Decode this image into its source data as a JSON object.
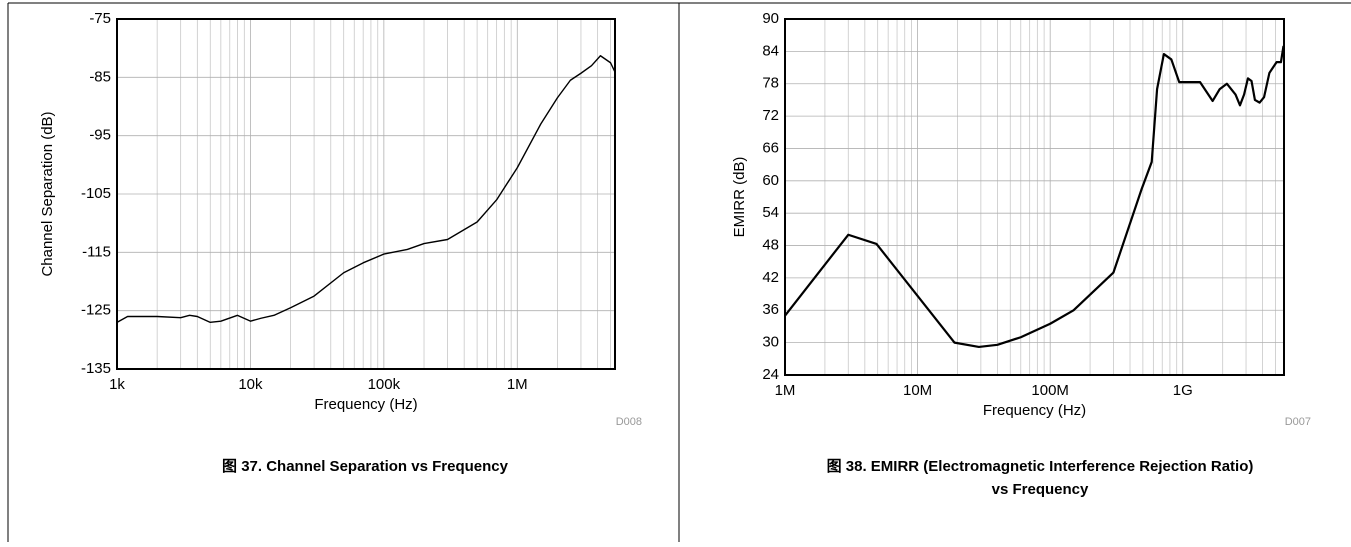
{
  "chart_data": [
    {
      "type": "line",
      "x_scale": "log",
      "grid": true,
      "minor_grid": true,
      "xlabel": "Frequency (Hz)",
      "ylabel": "Channel Separation (dB)",
      "note": "D008",
      "caption": [
        "图 37. Channel Separation vs Frequency"
      ],
      "xlim": [
        1000,
        5400000
      ],
      "ylim": [
        -135,
        -75
      ],
      "xticks": [
        {
          "value": 1000,
          "label": "1k"
        },
        {
          "value": 10000,
          "label": "10k"
        },
        {
          "value": 100000,
          "label": "100k"
        },
        {
          "value": 1000000,
          "label": "1M"
        }
      ],
      "yticks": [
        -135,
        -125,
        -115,
        -105,
        -95,
        -85,
        -75
      ],
      "x": [
        1000,
        1200,
        2000,
        3000,
        3500,
        4000,
        5000,
        6000,
        8000,
        10000,
        12000,
        15000,
        20000,
        30000,
        50000,
        70000,
        100000,
        150000,
        200000,
        300000,
        500000,
        700000,
        1000000,
        1500000,
        2000000,
        2500000,
        3000000,
        3600000,
        4200000,
        5000000,
        5400000
      ],
      "series": [
        {
          "color": "#000000",
          "values": [
            -127,
            -126,
            -126,
            -126.2,
            -125.8,
            -126,
            -127,
            -126.8,
            -125.8,
            -126.8,
            -126.3,
            -125.8,
            -124.5,
            -122.5,
            -118.5,
            -116.8,
            -115.3,
            -114.5,
            -113.5,
            -112.8,
            -109.8,
            -106,
            -100.5,
            -93,
            -88.5,
            -85.5,
            -84.3,
            -83,
            -81.3,
            -82.5,
            -84.1
          ]
        }
      ]
    },
    {
      "type": "line",
      "x_scale": "log",
      "grid": true,
      "minor_grid": true,
      "xlabel": "Frequency (Hz)",
      "ylabel": "EMIRR (dB)",
      "note": "D007",
      "caption": [
        "图 38. EMIRR (Electromagnetic Interference Rejection Ratio)",
        "vs Frequency"
      ],
      "xlim": [
        1000000,
        5800000000
      ],
      "ylim": [
        24,
        90
      ],
      "xticks": [
        {
          "value": 1000000,
          "label": "1M"
        },
        {
          "value": 10000000,
          "label": "10M"
        },
        {
          "value": 100000000,
          "label": "100M"
        },
        {
          "value": 1000000000,
          "label": "1G"
        }
      ],
      "yticks": [
        24,
        30,
        36,
        42,
        48,
        54,
        60,
        66,
        72,
        78,
        84,
        90
      ],
      "x": [
        1000000,
        3000000,
        4900000,
        19000000,
        29000000,
        40000000,
        60000000,
        100000000,
        150000000,
        300000000,
        490000000,
        583000000,
        640000000,
        720000000,
        820000000,
        940000000,
        1350000000,
        1680000000,
        1900000000,
        2150000000,
        2500000000,
        2700000000,
        2900000000,
        3100000000,
        3300000000,
        3500000000,
        3800000000,
        4100000000,
        4500000000,
        5100000000,
        5500000000,
        5750000000
      ],
      "series": [
        {
          "color": "#000000",
          "values": [
            35,
            50,
            48.3,
            30,
            29.2,
            29.6,
            31,
            33.5,
            36,
            43,
            58.5,
            63.5,
            77,
            83.5,
            82.5,
            78.3,
            78.3,
            74.8,
            77,
            78,
            76,
            74,
            76,
            79,
            78.5,
            75,
            74.5,
            75.5,
            80,
            82,
            82,
            85
          ]
        }
      ]
    }
  ]
}
